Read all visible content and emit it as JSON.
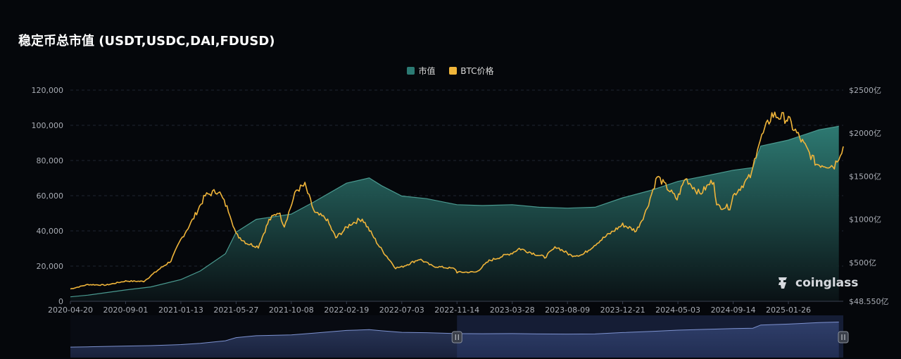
{
  "title": "稳定币总市值 (USDT,USDC,DAI,FDUSD)",
  "brand": "coinglass",
  "colors": {
    "marketcap": "#2b7a73",
    "btc": "#f0b53a",
    "background": "#05070b"
  },
  "chart_data": {
    "type": "line",
    "title": "稳定币总市值 (USDT,USDC,DAI,FDUSD)",
    "legend_position": "top-center",
    "grid": true,
    "x_tick_labels": [
      "2020-04-20",
      "2020-09-01",
      "2021-01-13",
      "2021-05-27",
      "2021-10-08",
      "2022-02-19",
      "2022-07-03",
      "2022-11-14",
      "2023-03-28",
      "2023-08-09",
      "2023-12-21",
      "2024-05-03",
      "2024-09-14",
      "2025-01-26"
    ],
    "left_axis": {
      "ticks": [
        "0",
        "20,000",
        "40,000",
        "60,000",
        "80,000",
        "100,000",
        "120,000"
      ],
      "ylim": [
        0,
        120000
      ]
    },
    "right_axis": {
      "ticks": [
        "$48.550亿",
        "$500亿",
        "$1000亿",
        "$1500亿",
        "$2000亿",
        "$2500亿"
      ],
      "ylim": [
        48.55,
        2500
      ]
    },
    "series": [
      {
        "name": "市值",
        "axis": "right",
        "kind": "area",
        "x": [
          "2020-04-20",
          "2020-06-01",
          "2020-09-01",
          "2020-11-01",
          "2021-01-13",
          "2021-03-01",
          "2021-05-01",
          "2021-05-27",
          "2021-07-15",
          "2021-10-08",
          "2021-12-01",
          "2022-02-19",
          "2022-04-15",
          "2022-05-15",
          "2022-07-03",
          "2022-09-01",
          "2022-11-14",
          "2023-01-15",
          "2023-03-28",
          "2023-06-01",
          "2023-08-09",
          "2023-10-15",
          "2023-12-21",
          "2024-03-01",
          "2024-05-03",
          "2024-07-15",
          "2024-09-14",
          "2024-11-01",
          "2024-11-20",
          "2025-01-26",
          "2025-03-15",
          "2025-04-15"
        ],
        "y": [
          100,
          120,
          180,
          215,
          300,
          400,
          600,
          850,
          1000,
          1060,
          1200,
          1420,
          1480,
          1390,
          1270,
          1240,
          1170,
          1160,
          1170,
          1140,
          1130,
          1140,
          1250,
          1340,
          1440,
          1510,
          1570,
          1600,
          1850,
          1920,
          2040,
          2080
        ]
      },
      {
        "name": "BTC价格",
        "axis": "left",
        "kind": "line",
        "x": [
          "2020-04-20",
          "2020-06-01",
          "2020-07-15",
          "2020-09-01",
          "2020-10-15",
          "2020-11-20",
          "2020-12-20",
          "2021-01-13",
          "2021-02-10",
          "2021-03-13",
          "2021-04-14",
          "2021-05-12",
          "2021-05-27",
          "2021-06-22",
          "2021-07-20",
          "2021-08-15",
          "2021-09-07",
          "2021-09-21",
          "2021-10-20",
          "2021-11-10",
          "2021-12-04",
          "2022-01-01",
          "2022-01-24",
          "2022-03-01",
          "2022-03-29",
          "2022-05-10",
          "2022-06-18",
          "2022-07-03",
          "2022-08-15",
          "2022-09-15",
          "2022-11-09",
          "2022-11-14",
          "2022-12-31",
          "2023-01-31",
          "2023-03-28",
          "2023-04-14",
          "2023-06-15",
          "2023-07-13",
          "2023-08-18",
          "2023-09-15",
          "2023-10-24",
          "2023-12-05",
          "2023-12-21",
          "2024-01-23",
          "2024-02-15",
          "2024-03-14",
          "2024-05-01",
          "2024-05-21",
          "2024-06-25",
          "2024-07-29",
          "2024-08-05",
          "2024-09-06",
          "2024-09-14",
          "2024-10-29",
          "2024-11-12",
          "2024-12-17",
          "2025-01-21",
          "2025-01-26",
          "2025-02-28",
          "2025-03-11",
          "2025-04-08",
          "2025-04-22"
        ],
        "y": [
          7000,
          9500,
          9200,
          11500,
          11300,
          18000,
          23000,
          35000,
          46000,
          60000,
          63000,
          50000,
          38000,
          33000,
          31000,
          46000,
          51000,
          43000,
          63000,
          66000,
          50000,
          47000,
          36000,
          44000,
          47000,
          31000,
          19000,
          19500,
          24000,
          20000,
          18500,
          16500,
          16600,
          23000,
          27500,
          30000,
          25000,
          31000,
          26000,
          26500,
          34000,
          41000,
          43500,
          40000,
          51000,
          71000,
          58000,
          70000,
          61000,
          69000,
          54000,
          53500,
          60000,
          72000,
          88000,
          106000,
          104000,
          103000,
          84000,
          78000,
          77000,
          88000
        ]
      }
    ],
    "navigator": {
      "range_start": "2022-11-14",
      "range_end": "2025-04-22"
    }
  }
}
